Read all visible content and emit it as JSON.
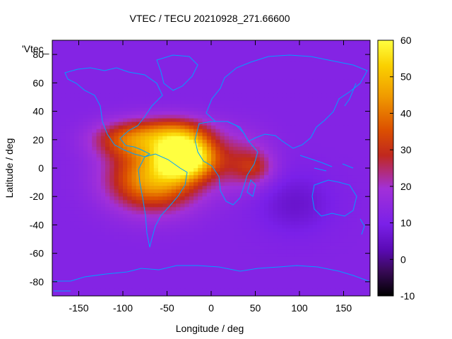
{
  "chart_data": {
    "type": "heatmap",
    "title": "VTEC / TECU 20210928_271.66600",
    "series_label": "'Vtec_",
    "xlabel": "Longitude / deg",
    "ylabel": "Latitude / deg",
    "xlim": [
      -180,
      180
    ],
    "ylim": [
      -90,
      90
    ],
    "x_ticks": [
      -150,
      -100,
      -50,
      0,
      50,
      100,
      150
    ],
    "y_ticks": [
      -80,
      -60,
      -40,
      -20,
      0,
      20,
      40,
      60,
      80
    ],
    "colorbar": {
      "range": [
        -10,
        60
      ],
      "ticks": [
        -10,
        0,
        10,
        20,
        30,
        40,
        50,
        60
      ]
    },
    "grid_resolution_deg": {
      "lon": 5,
      "lat": 2.5
    },
    "tec_background_tecu": 12,
    "tec_features": [
      {
        "name": "equatorial-anomaly-core",
        "lon": -30,
        "lat": 8,
        "peak": 55,
        "sigma_lon": 22,
        "sigma_lat": 10
      },
      {
        "name": "south-america-crest",
        "lon": -65,
        "lat": -8,
        "peak": 35,
        "sigma_lon": 35,
        "sigma_lat": 15
      },
      {
        "name": "north-crest-central-america",
        "lon": -90,
        "lat": 20,
        "peak": 24,
        "sigma_lon": 30,
        "sigma_lat": 9
      },
      {
        "name": "atlantic-north-crest",
        "lon": -40,
        "lat": 25,
        "peak": 20,
        "sigma_lon": 28,
        "sigma_lat": 8
      },
      {
        "name": "africa-extension",
        "lon": 30,
        "lat": 5,
        "peak": 12,
        "sigma_lon": 25,
        "sigma_lat": 14
      },
      {
        "name": "indian-ocean-patch",
        "lon": 50,
        "lat": 0,
        "peak": 10,
        "sigma_lon": 15,
        "sigma_lat": 8
      },
      {
        "name": "asian-night-minimum",
        "lon": 95,
        "lat": -25,
        "peak": -6,
        "sigma_lon": 30,
        "sigma_lat": 15
      }
    ]
  }
}
